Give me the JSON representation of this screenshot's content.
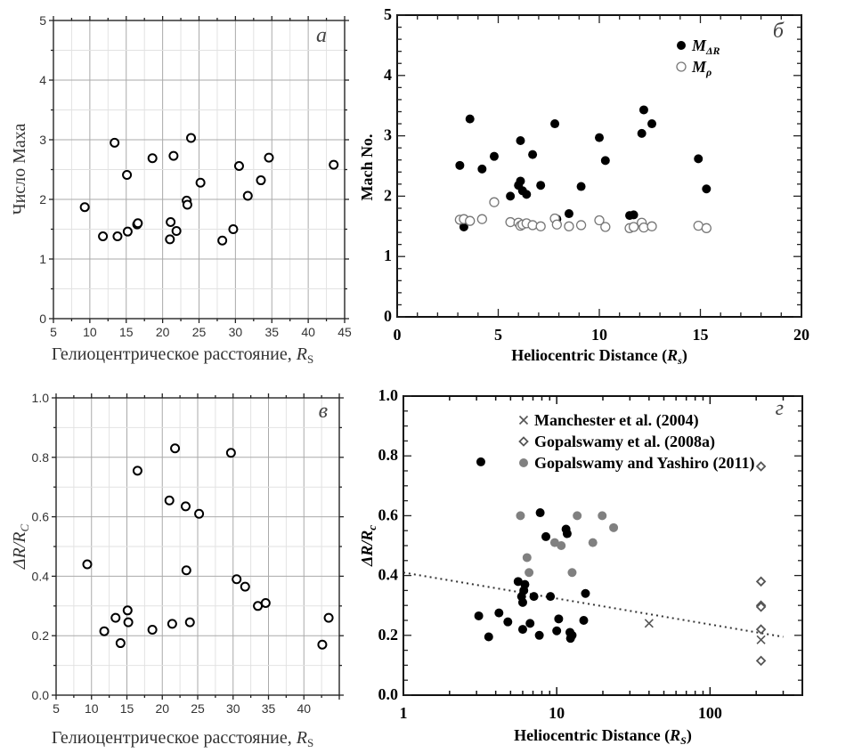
{
  "chart_data": [
    {
      "panel": "а",
      "type": "scatter",
      "ylabel": "Число Маха",
      "xlabel": {
        "text": "Гелиоцентрическое расстояние, ",
        "symbol": "R",
        "sub": "S"
      },
      "xlim": [
        5,
        45
      ],
      "ylim": [
        0,
        5
      ],
      "xticks": [
        5,
        10,
        15,
        20,
        25,
        30,
        35,
        40,
        45
      ],
      "yticks": [
        0,
        1,
        2,
        3,
        4,
        5
      ],
      "grid": true,
      "series": [
        {
          "marker": "open-circle",
          "color": "#000000",
          "points": [
            [
              9.3,
              1.87
            ],
            [
              11.8,
              1.38
            ],
            [
              13.4,
              2.95
            ],
            [
              13.8,
              1.38
            ],
            [
              15.1,
              2.41
            ],
            [
              15.2,
              1.46
            ],
            [
              16.5,
              1.58
            ],
            [
              16.6,
              1.6
            ],
            [
              18.6,
              2.69
            ],
            [
              21.0,
              1.33
            ],
            [
              21.1,
              1.62
            ],
            [
              21.5,
              2.73
            ],
            [
              21.9,
              1.47
            ],
            [
              23.3,
              1.98
            ],
            [
              23.4,
              1.91
            ],
            [
              23.9,
              3.03
            ],
            [
              25.2,
              2.28
            ],
            [
              28.2,
              1.31
            ],
            [
              29.7,
              1.5
            ],
            [
              30.5,
              2.56
            ],
            [
              31.7,
              2.06
            ],
            [
              33.5,
              2.32
            ],
            [
              34.6,
              2.7
            ],
            [
              43.5,
              2.58
            ]
          ]
        }
      ]
    },
    {
      "panel": "б",
      "type": "scatter",
      "ylabel": "Mach No.",
      "xlabel": {
        "text": "Heliocentric Distance (",
        "symbol": "R",
        "sub": "s",
        "after": ")"
      },
      "xlim": [
        0,
        20
      ],
      "ylim": [
        0,
        5
      ],
      "xticks": [
        0,
        5,
        10,
        15,
        20
      ],
      "yticks": [
        0,
        1,
        2,
        3,
        4,
        5
      ],
      "grid": false,
      "legend_position": "top-right",
      "series": [
        {
          "name": "M",
          "name_sub": "ΔR",
          "marker": "filled-circle",
          "color": "#000000",
          "points": [
            [
              3.1,
              2.51
            ],
            [
              3.3,
              1.49
            ],
            [
              3.6,
              3.28
            ],
            [
              4.2,
              2.45
            ],
            [
              4.8,
              2.66
            ],
            [
              5.6,
              2.0
            ],
            [
              6.0,
              2.18
            ],
            [
              6.1,
              2.25
            ],
            [
              6.1,
              2.92
            ],
            [
              6.2,
              2.09
            ],
            [
              6.4,
              2.03
            ],
            [
              6.7,
              2.69
            ],
            [
              7.1,
              2.18
            ],
            [
              7.8,
              3.2
            ],
            [
              7.9,
              1.62
            ],
            [
              8.5,
              1.71
            ],
            [
              9.1,
              2.16
            ],
            [
              10.0,
              2.97
            ],
            [
              10.3,
              2.59
            ],
            [
              11.5,
              1.68
            ],
            [
              11.7,
              1.69
            ],
            [
              12.1,
              3.04
            ],
            [
              12.2,
              3.43
            ],
            [
              12.6,
              3.2
            ],
            [
              14.9,
              2.62
            ],
            [
              15.3,
              2.12
            ]
          ]
        },
        {
          "name": "M",
          "name_sub": "ρ",
          "marker": "open-circle",
          "color": "#777777",
          "points": [
            [
              3.1,
              1.61
            ],
            [
              3.3,
              1.62
            ],
            [
              3.6,
              1.59
            ],
            [
              4.2,
              1.62
            ],
            [
              4.8,
              1.9
            ],
            [
              5.6,
              1.57
            ],
            [
              6.0,
              1.56
            ],
            [
              6.1,
              1.51
            ],
            [
              6.2,
              1.53
            ],
            [
              6.4,
              1.55
            ],
            [
              6.7,
              1.52
            ],
            [
              7.1,
              1.5
            ],
            [
              7.8,
              1.63
            ],
            [
              7.9,
              1.53
            ],
            [
              8.5,
              1.5
            ],
            [
              9.1,
              1.52
            ],
            [
              10.0,
              1.6
            ],
            [
              10.3,
              1.49
            ],
            [
              11.5,
              1.47
            ],
            [
              11.7,
              1.49
            ],
            [
              12.1,
              1.56
            ],
            [
              12.2,
              1.48
            ],
            [
              12.6,
              1.5
            ],
            [
              14.9,
              1.51
            ],
            [
              15.3,
              1.47
            ]
          ]
        }
      ]
    },
    {
      "panel": "в",
      "type": "scatter",
      "ylabel": {
        "text": "ΔR/R",
        "sub": "C"
      },
      "xlabel": {
        "text": "Гелиоцентрическое расстояние, ",
        "symbol": "R",
        "sub": "S"
      },
      "xlim": [
        5,
        45
      ],
      "ylim": [
        0,
        1
      ],
      "xticks": [
        5,
        10,
        15,
        20,
        25,
        30,
        35,
        40
      ],
      "yticks": [
        "0.0",
        "0.2",
        "0.4",
        "0.6",
        "0.8",
        "1.0"
      ],
      "grid": true,
      "series": [
        {
          "marker": "open-circle",
          "color": "#000000",
          "points": [
            [
              9.4,
              0.44
            ],
            [
              11.8,
              0.215
            ],
            [
              13.4,
              0.26
            ],
            [
              14.1,
              0.175
            ],
            [
              15.1,
              0.285
            ],
            [
              15.2,
              0.245
            ],
            [
              16.5,
              0.755
            ],
            [
              18.6,
              0.22
            ],
            [
              21.0,
              0.655
            ],
            [
              21.4,
              0.24
            ],
            [
              21.8,
              0.83
            ],
            [
              23.3,
              0.635
            ],
            [
              23.4,
              0.42
            ],
            [
              23.9,
              0.245
            ],
            [
              25.2,
              0.61
            ],
            [
              29.7,
              0.815
            ],
            [
              30.5,
              0.39
            ],
            [
              31.7,
              0.365
            ],
            [
              33.5,
              0.3
            ],
            [
              34.6,
              0.31
            ],
            [
              42.6,
              0.17
            ],
            [
              43.5,
              0.26
            ]
          ]
        }
      ]
    },
    {
      "panel": "г",
      "type": "scatter",
      "ylabel": {
        "text": "ΔR/R",
        "sub": "c"
      },
      "xlabel": {
        "text": "Heliocentric Distance (",
        "symbol": "R",
        "sub": "S",
        "after": ")"
      },
      "xscale": "log",
      "xlim": [
        1,
        400
      ],
      "ylim": [
        0,
        1
      ],
      "xticks": [
        "1",
        "10",
        "100"
      ],
      "yticks": [
        "0.0",
        "0.2",
        "0.4",
        "0.6",
        "0.8",
        "1.0"
      ],
      "grid": false,
      "legend_position": "top",
      "series": [
        {
          "marker": "filled-circle",
          "color": "#000000",
          "points": [
            [
              3.2,
              0.78
            ],
            [
              3.1,
              0.265
            ],
            [
              3.6,
              0.195
            ],
            [
              4.2,
              0.275
            ],
            [
              4.8,
              0.245
            ],
            [
              5.6,
              0.38
            ],
            [
              5.9,
              0.33
            ],
            [
              6.0,
              0.31
            ],
            [
              6.0,
              0.22
            ],
            [
              6.1,
              0.35
            ],
            [
              6.2,
              0.37
            ],
            [
              6.7,
              0.24
            ],
            [
              7.1,
              0.33
            ],
            [
              7.8,
              0.61
            ],
            [
              7.7,
              0.2
            ],
            [
              8.5,
              0.53
            ],
            [
              9.1,
              0.33
            ],
            [
              10.0,
              0.215
            ],
            [
              10.3,
              0.255
            ],
            [
              11.5,
              0.555
            ],
            [
              11.7,
              0.54
            ],
            [
              12.2,
              0.21
            ],
            [
              12.3,
              0.19
            ],
            [
              12.6,
              0.2
            ],
            [
              15.0,
              0.25
            ],
            [
              15.4,
              0.34
            ]
          ]
        },
        {
          "name": "Manchester et al. (2004)",
          "marker": "cross",
          "color": "#555555",
          "points": [
            [
              40,
              0.24
            ],
            [
              215,
              0.185
            ]
          ]
        },
        {
          "name": "Gopalswamy et al. (2008a)",
          "marker": "open-diamond",
          "color": "#555555",
          "points": [
            [
              215,
              0.765
            ],
            [
              215,
              0.38
            ],
            [
              215,
              0.3
            ],
            [
              215,
              0.295
            ],
            [
              215,
              0.22
            ],
            [
              215,
              0.115
            ]
          ]
        },
        {
          "name": "Gopalswamy and Yashiro (2011)",
          "marker": "filled-circle",
          "color": "#808080",
          "points": [
            [
              5.8,
              0.6
            ],
            [
              6.4,
              0.46
            ],
            [
              6.6,
              0.41
            ],
            [
              9.7,
              0.51
            ],
            [
              10.7,
              0.5
            ],
            [
              12.6,
              0.41
            ],
            [
              13.6,
              0.6
            ],
            [
              17.2,
              0.51
            ],
            [
              19.8,
              0.6
            ],
            [
              23.5,
              0.56
            ]
          ]
        }
      ],
      "trend_line": {
        "style": "dotted",
        "color": "#333333",
        "points": [
          [
            1,
            0.41
          ],
          [
            300,
            0.195
          ]
        ]
      }
    }
  ]
}
